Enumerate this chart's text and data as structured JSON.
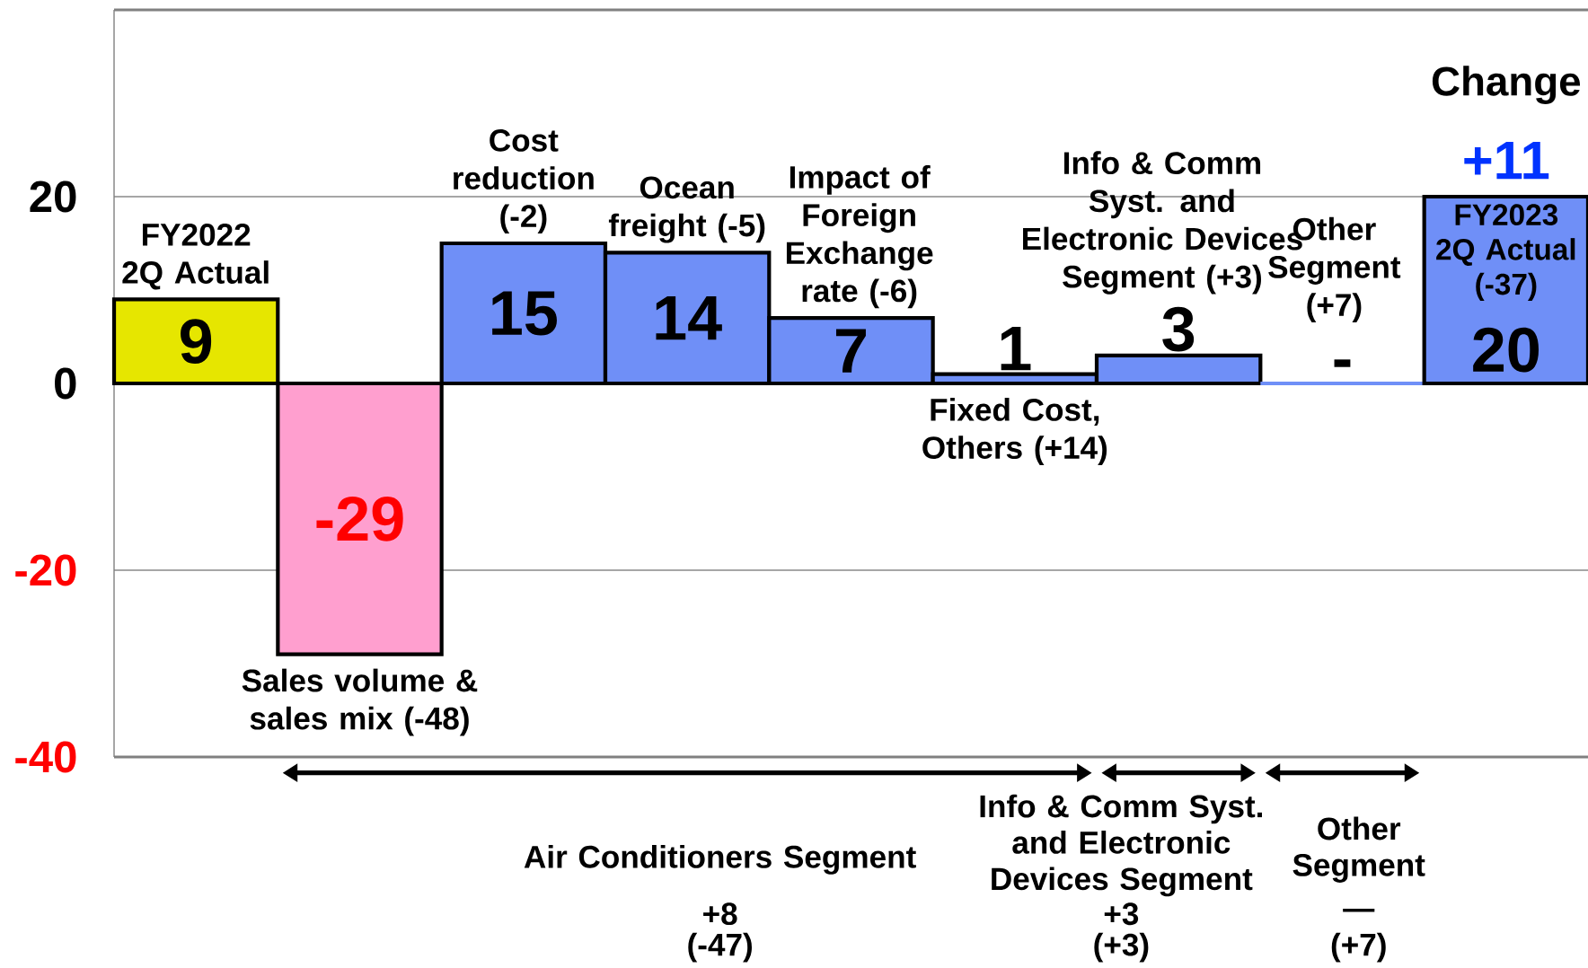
{
  "chart_data": {
    "type": "bar",
    "categories": [
      "FY2022 2Q Actual",
      "Sales  volume & sales mix (-48)",
      "Cost reduction (-2)",
      "Ocean freight (-5)",
      "Impact of Foreign Exchange rate (-6)",
      "Fixed Cost, Others (+14)",
      "Info & Comm Syst. and Electronic Devices Segment (+3)",
      "Other Segment (+7)",
      "FY2023 2Q Actual (-37)"
    ],
    "values": [
      9,
      -29,
      15,
      14,
      7,
      1,
      3,
      0,
      20
    ],
    "value_labels": [
      "9",
      "-29",
      "15",
      "14",
      "7",
      "1",
      "3",
      "-",
      "20"
    ],
    "colors": [
      "#e6e600",
      "#ff9fcf",
      "#6f8ff7",
      "#6f8ff7",
      "#6f8ff7",
      "#6f8ff7",
      "#6f8ff7",
      "#6f8ff7",
      "#6f8ff7"
    ],
    "ylim": [
      -40,
      40
    ],
    "yticks": [
      -40,
      -20,
      0,
      20
    ],
    "grid": "y",
    "annotations": [
      "Change",
      "+11",
      "Air Conditioners Segment",
      "+8",
      "(-47)",
      "Info & Comm Syst. and Electronic Devices Segment",
      "+3",
      "(+3)",
      "Other Segment",
      "—",
      "(+7)"
    ]
  }
}
